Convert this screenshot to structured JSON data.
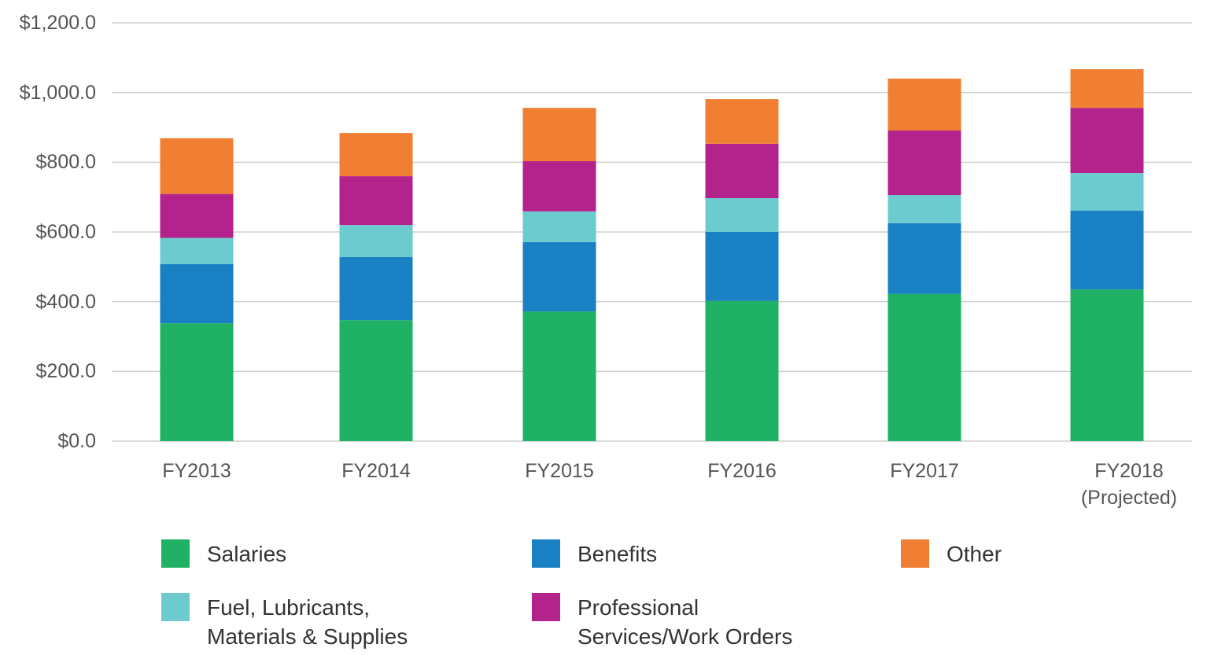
{
  "chart_data": {
    "type": "stacked_bar",
    "categories": [
      "FY2013",
      "FY2014",
      "FY2015",
      "FY2016",
      "FY2017",
      "FY2018\n(Projected)"
    ],
    "series": [
      {
        "name": "Salaries",
        "color": "#1fb164",
        "values": [
          338,
          347,
          372,
          402,
          422,
          435
        ]
      },
      {
        "name": "Benefits",
        "color": "#1a80c4",
        "values": [
          170,
          181,
          199,
          198,
          203,
          226
        ]
      },
      {
        "name": "Fuel, Lubricants,\nMaterials & Supplies",
        "color": "#6ccbcf",
        "values": [
          75,
          92,
          88,
          97,
          81,
          108
        ]
      },
      {
        "name": "Professional\nServices/Work Orders",
        "color": "#b3238b",
        "values": [
          126,
          140,
          144,
          156,
          185,
          187
        ]
      },
      {
        "name": "Other",
        "color": "#f07f33",
        "values": [
          160,
          124,
          153,
          128,
          149,
          111
        ]
      }
    ],
    "ylim": [
      0,
      1200
    ],
    "yticks": [
      {
        "value": 0,
        "label": "$0.0"
      },
      {
        "value": 200,
        "label": "$200.0"
      },
      {
        "value": 400,
        "label": "$400.0"
      },
      {
        "value": 600,
        "label": "$600.0"
      },
      {
        "value": 800,
        "label": "$800.0"
      },
      {
        "value": 1000,
        "label": "$1,000.0"
      },
      {
        "value": 1200,
        "label": "$1,200.0"
      }
    ],
    "grid": true
  }
}
